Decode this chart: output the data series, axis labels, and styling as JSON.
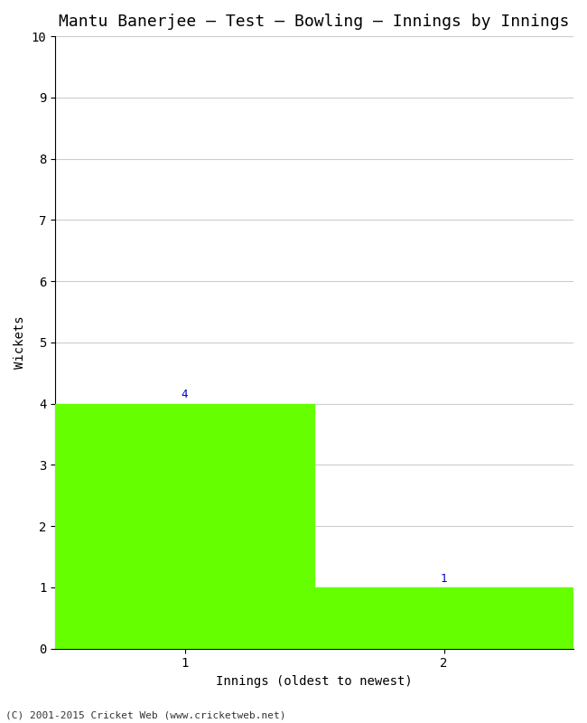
{
  "title": "Mantu Banerjee – Test – Bowling – Innings by Innings",
  "xlabel": "Innings (oldest to newest)",
  "ylabel": "Wickets",
  "bar_categories": [
    1,
    2
  ],
  "bar_values": [
    4,
    1
  ],
  "bar_color": "#66ff00",
  "bar_labels": [
    "4",
    "1"
  ],
  "ylim": [
    0,
    10
  ],
  "yticks": [
    0,
    1,
    2,
    3,
    4,
    5,
    6,
    7,
    8,
    9,
    10
  ],
  "xticks": [
    1,
    2
  ],
  "background_color": "#ffffff",
  "grid_color": "#cccccc",
  "title_fontsize": 13,
  "axis_fontsize": 10,
  "label_fontsize": 9,
  "tick_fontsize": 10,
  "footer": "(C) 2001-2015 Cricket Web (www.cricketweb.net)",
  "label_color": "#0000cc",
  "bar_width": 1.0
}
